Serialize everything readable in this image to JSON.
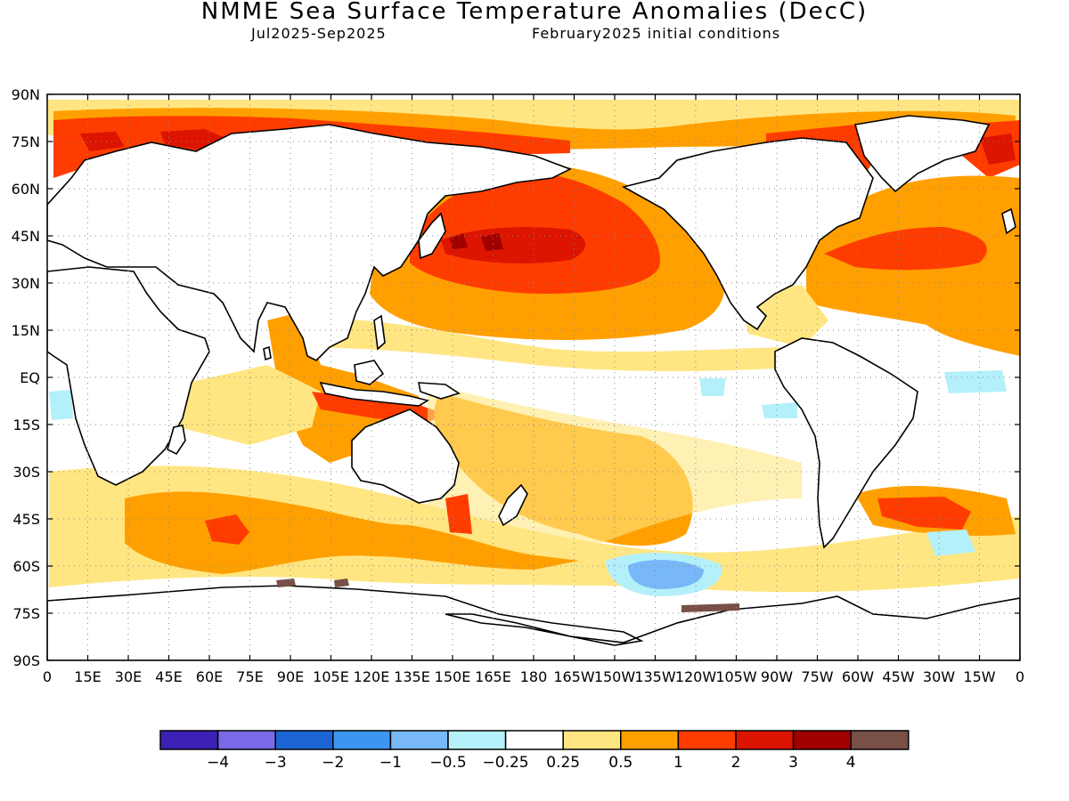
{
  "header": {
    "title": "NMME Sea Surface Temperature Anomalies (DecC)",
    "period": "Jul2025-Sep2025",
    "init": "February2025 initial conditions"
  },
  "map": {
    "lat_labels": [
      "90N",
      "75N",
      "60N",
      "45N",
      "30N",
      "15N",
      "EQ",
      "15S",
      "30S",
      "45S",
      "60S",
      "75S",
      "90S"
    ],
    "lon_labels": [
      "0",
      "15E",
      "30E",
      "45E",
      "60E",
      "75E",
      "90E",
      "105E",
      "120E",
      "135E",
      "150E",
      "165E",
      "180",
      "165W",
      "150W",
      "135W",
      "120W",
      "105W",
      "90W",
      "75W",
      "60W",
      "45W",
      "30W",
      "15W",
      "0"
    ]
  },
  "legend": {
    "colors": [
      "#3c1fb4",
      "#7a6ae8",
      "#1c64d4",
      "#3c96f0",
      "#78b8f8",
      "#b4f0fa",
      "#ffffff",
      "#ffe682",
      "#ffa000",
      "#ff3c00",
      "#dc1400",
      "#a00000",
      "#785046"
    ],
    "labels": [
      "-4",
      "-3",
      "-2",
      "-1",
      "-0.5",
      "-0.25",
      "0.25",
      "0.5",
      "1",
      "2",
      "3",
      "4"
    ]
  }
}
